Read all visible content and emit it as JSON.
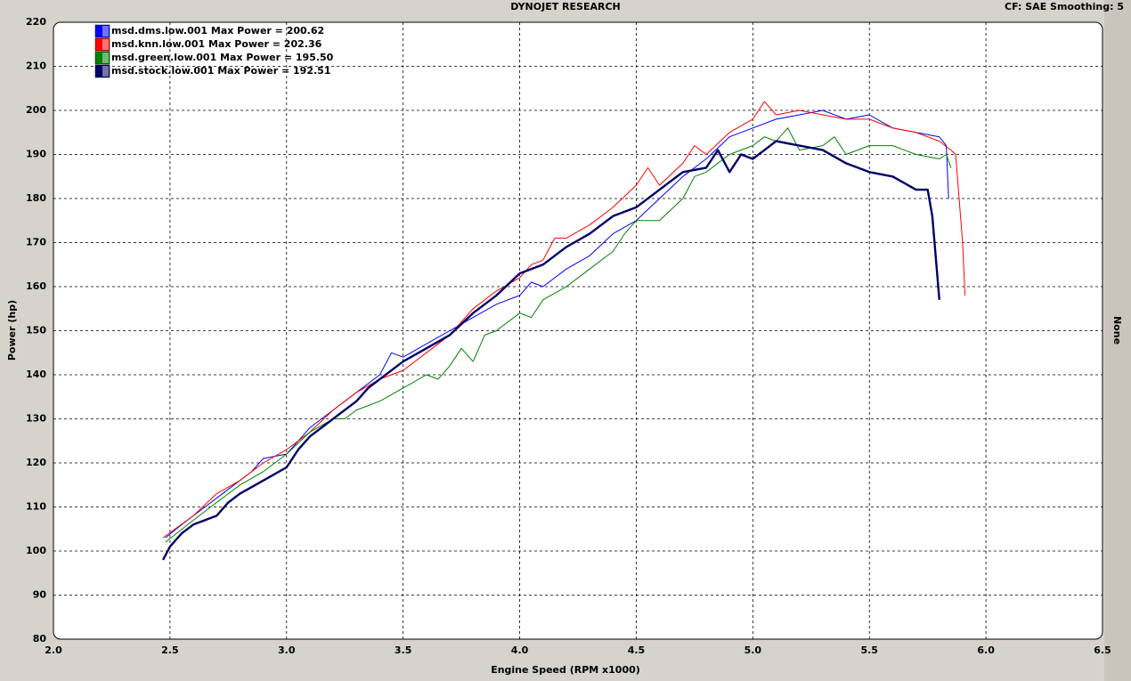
{
  "chart_data": {
    "type": "line",
    "title": "DYNOJET RESEARCH",
    "subtitle": "CF: SAE  Smoothing: 5",
    "x_label": "Engine Speed (RPM x1000)",
    "y_label": "Power (hp)",
    "y2_label": "None",
    "xlim": [
      2.0,
      6.5
    ],
    "xticks": [
      {
        "value": 2,
        "label": "2.0"
      },
      2.5,
      {
        "value": 3,
        "label": "3.0"
      },
      3.5,
      {
        "value": 4,
        "label": "4.0"
      },
      4.5,
      {
        "value": 5,
        "label": "5.0"
      },
      5.5,
      {
        "value": 6,
        "label": "6.0"
      },
      6.5
    ],
    "ylim": [
      80,
      220
    ],
    "yticks": [
      80,
      90,
      100,
      110,
      120,
      130,
      140,
      150,
      160,
      170,
      180,
      190,
      200,
      210,
      220
    ],
    "grid": true,
    "series": [
      {
        "name": "msd.dms.low.001 Max Power = 200.62",
        "color": "#0000ff",
        "x": [
          2.48,
          2.55,
          2.65,
          2.75,
          2.85,
          2.9,
          3.0,
          3.05,
          3.1,
          3.2,
          3.3,
          3.4,
          3.45,
          3.5,
          3.6,
          3.7,
          3.8,
          3.9,
          4.0,
          4.05,
          4.1,
          4.2,
          4.3,
          4.4,
          4.5,
          4.6,
          4.7,
          4.8,
          4.9,
          5.0,
          5.1,
          5.2,
          5.3,
          5.4,
          5.5,
          5.6,
          5.7,
          5.8,
          5.83,
          5.84
        ],
        "values": [
          103,
          106,
          110,
          114,
          118,
          121,
          122,
          125,
          128,
          132,
          136,
          140,
          145,
          144,
          147,
          150,
          153,
          156,
          158,
          161,
          160,
          164,
          167,
          172,
          175,
          180,
          185,
          189,
          194,
          196,
          198,
          199,
          200,
          198,
          199,
          196,
          195,
          194,
          192,
          180
        ]
      },
      {
        "name": "msd.knn.low.001 Max Power = 202.36",
        "color": "#ff0000",
        "x": [
          2.47,
          2.6,
          2.7,
          2.8,
          2.9,
          3.0,
          3.1,
          3.2,
          3.3,
          3.4,
          3.5,
          3.6,
          3.7,
          3.8,
          3.9,
          4.0,
          4.05,
          4.1,
          4.15,
          4.2,
          4.3,
          4.4,
          4.5,
          4.55,
          4.6,
          4.7,
          4.75,
          4.8,
          4.9,
          5.0,
          5.05,
          5.1,
          5.2,
          5.3,
          5.4,
          5.5,
          5.6,
          5.7,
          5.8,
          5.85,
          5.87,
          5.9,
          5.91
        ],
        "values": [
          103,
          108,
          113,
          116,
          120,
          123,
          127,
          132,
          136,
          139,
          141,
          145,
          149,
          155,
          159,
          162,
          165,
          166,
          171,
          171,
          174,
          178,
          183,
          187,
          183,
          188,
          192,
          190,
          195,
          198,
          202,
          199,
          200,
          199,
          198,
          198,
          196,
          195,
          193,
          191,
          190,
          170,
          158
        ]
      },
      {
        "name": "msd.green.low.001 Max Power = 195.50",
        "color": "#008000",
        "x": [
          2.48,
          2.6,
          2.7,
          2.8,
          2.9,
          3.0,
          3.1,
          3.2,
          3.25,
          3.3,
          3.4,
          3.5,
          3.6,
          3.65,
          3.7,
          3.75,
          3.8,
          3.85,
          3.9,
          4.0,
          4.05,
          4.1,
          4.2,
          4.3,
          4.4,
          4.45,
          4.5,
          4.6,
          4.7,
          4.75,
          4.8,
          4.9,
          5.0,
          5.05,
          5.1,
          5.15,
          5.2,
          5.3,
          5.35,
          5.4,
          5.5,
          5.6,
          5.7,
          5.8,
          5.83,
          5.85
        ],
        "values": [
          102,
          107,
          111,
          115,
          118,
          122,
          127,
          130,
          130,
          132,
          134,
          137,
          140,
          139,
          142,
          146,
          143,
          149,
          150,
          154,
          153,
          157,
          160,
          164,
          168,
          172,
          175,
          175,
          180,
          185,
          186,
          190,
          192,
          194,
          193,
          196,
          191,
          192,
          194,
          190,
          192,
          192,
          190,
          189,
          190,
          187
        ]
      },
      {
        "name": "msd.stock.low.001 Max Power = 192.51",
        "color": "#000066",
        "x": [
          2.47,
          2.5,
          2.55,
          2.6,
          2.7,
          2.75,
          2.8,
          2.9,
          3.0,
          3.05,
          3.1,
          3.2,
          3.3,
          3.35,
          3.4,
          3.5,
          3.6,
          3.7,
          3.8,
          3.9,
          4.0,
          4.1,
          4.2,
          4.3,
          4.4,
          4.5,
          4.6,
          4.7,
          4.8,
          4.85,
          4.9,
          4.95,
          5.0,
          5.05,
          5.1,
          5.2,
          5.3,
          5.4,
          5.5,
          5.6,
          5.7,
          5.75,
          5.77,
          5.8
        ],
        "values": [
          98,
          101,
          104,
          106,
          108,
          111,
          113,
          116,
          119,
          123,
          126,
          130,
          134,
          137,
          139,
          143,
          146,
          149,
          154,
          158,
          163,
          165,
          169,
          172,
          176,
          178,
          182,
          186,
          187,
          191,
          186,
          190,
          189,
          191,
          193,
          192,
          191,
          188,
          186,
          185,
          182,
          182,
          176,
          157
        ]
      }
    ]
  }
}
